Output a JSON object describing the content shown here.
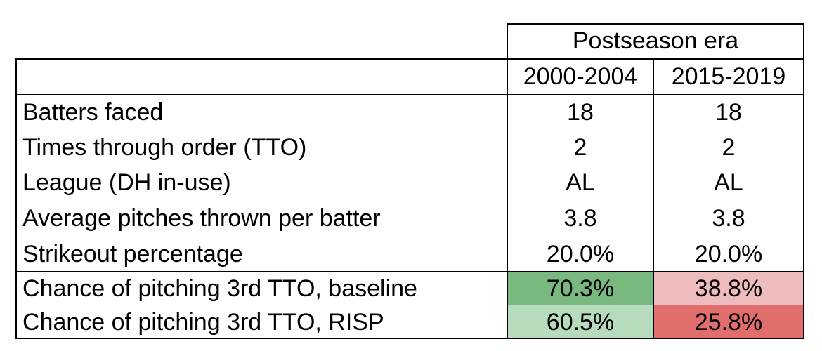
{
  "table": {
    "group_header": "Postseason era",
    "columns": [
      "2000-2004",
      "2015-2019"
    ],
    "rows": [
      {
        "label": "Batters faced",
        "values": [
          "18",
          "18"
        ]
      },
      {
        "label": "Times through order (TTO)",
        "values": [
          "2",
          "2"
        ]
      },
      {
        "label": "League (DH in-use)",
        "values": [
          "AL",
          "AL"
        ]
      },
      {
        "label": "Average pitches thrown per batter",
        "values": [
          "3.8",
          "3.8"
        ]
      },
      {
        "label": "Strikeout percentage",
        "values": [
          "20.0%",
          "20.0%"
        ]
      },
      {
        "label": "Chance of pitching 3rd TTO, baseline",
        "values": [
          "70.3%",
          "38.8%"
        ]
      },
      {
        "label": "Chance of pitching 3rd TTO, RISP",
        "values": [
          "60.5%",
          "25.8%"
        ]
      }
    ],
    "cell_colors": {
      "green_dark": "#79b980",
      "green_light": "#b6dbbd",
      "red_light": "#efbcbd",
      "red_dark": "#e26d6d"
    }
  }
}
